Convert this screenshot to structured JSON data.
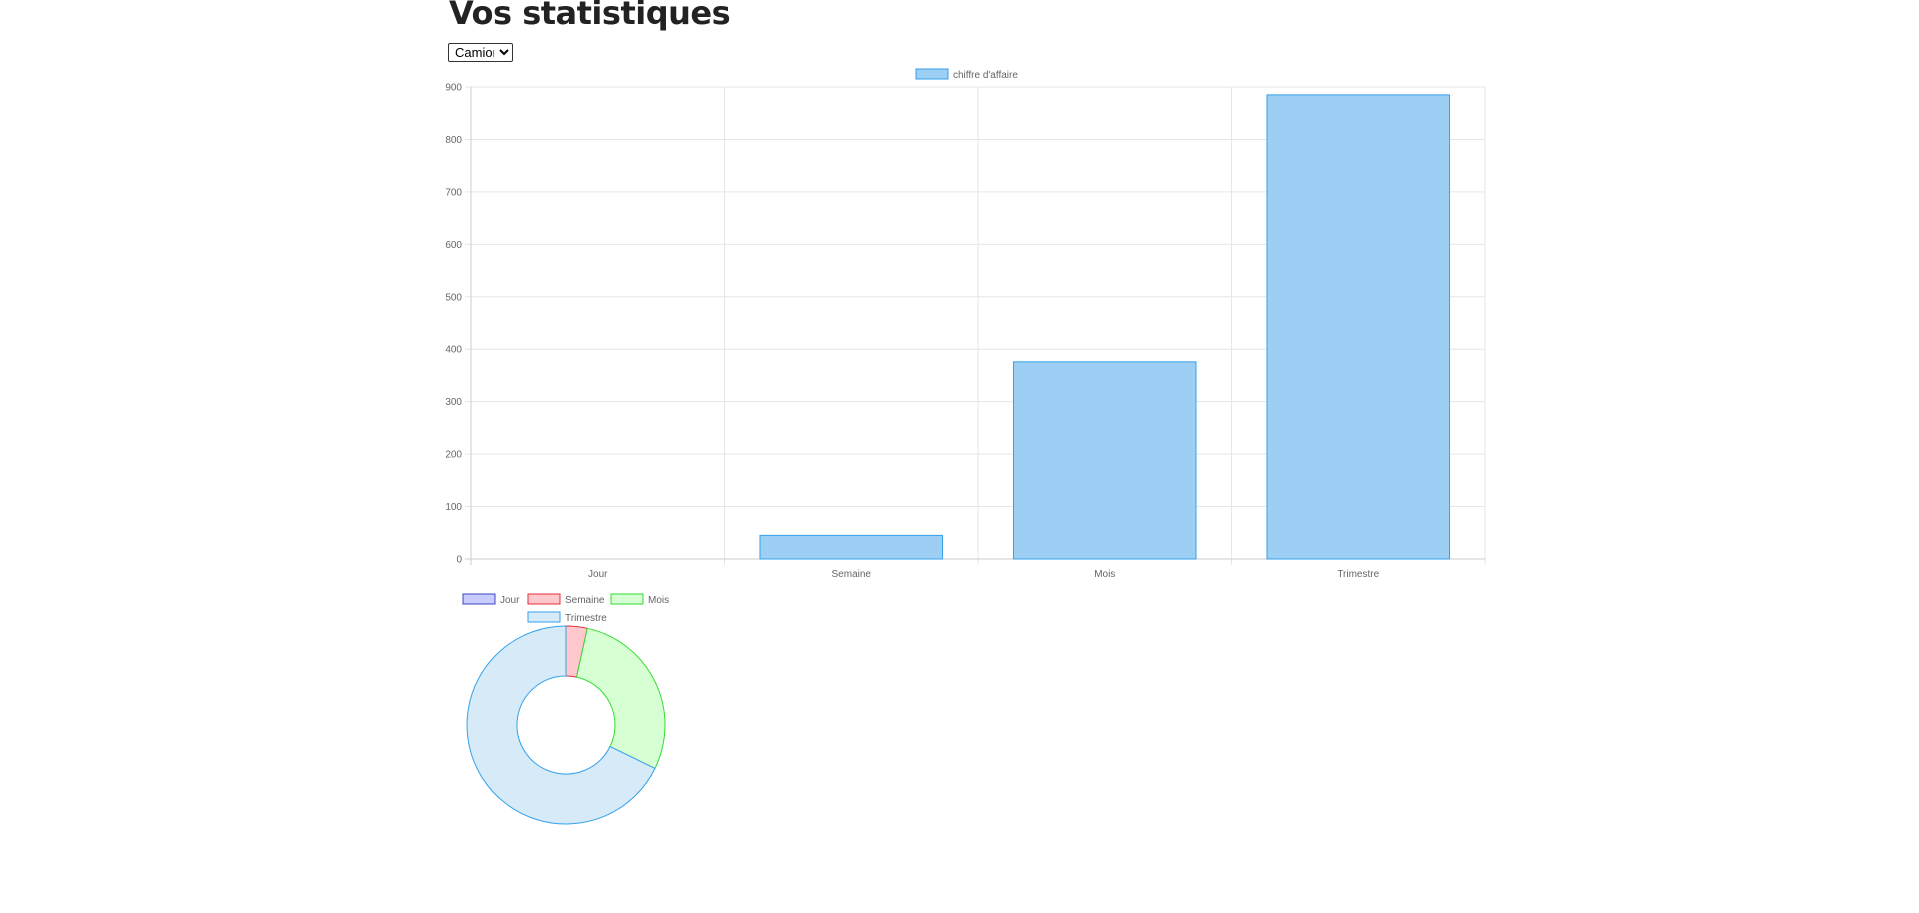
{
  "page": {
    "title": "Vos statistiques",
    "vehicle_select": {
      "selected": "Camion",
      "options": [
        "Camion"
      ]
    }
  },
  "colors": {
    "bar_fill": "#9ccff3",
    "bar_border": "#36a2eb",
    "grid": "#e6e6e6",
    "tick_text": "#666666",
    "title_text": "#222222"
  },
  "chart_data": [
    {
      "type": "bar",
      "categories": [
        "Jour",
        "Semaine",
        "Mois",
        "Trimestre"
      ],
      "series": [
        {
          "name": "chiffre d'affaire",
          "values": [
            0,
            45,
            376,
            885
          ]
        }
      ],
      "ylim": [
        0,
        900
      ],
      "yticks": [
        0,
        100,
        200,
        300,
        400,
        500,
        600,
        700,
        800,
        900
      ],
      "legend": "top",
      "grid": true
    },
    {
      "type": "pie",
      "donut": true,
      "labels": [
        "Jour",
        "Semaine",
        "Mois",
        "Trimestre"
      ],
      "values": [
        0,
        45,
        376,
        885
      ],
      "colors": {
        "fill": [
          "#c8ccff",
          "#ffc8cc",
          "#d6ffd3",
          "#d6eaf8"
        ],
        "border": [
          "#3b44c4",
          "#e0303a",
          "#33dd33",
          "#36a2eb"
        ]
      },
      "legend": "top"
    }
  ]
}
